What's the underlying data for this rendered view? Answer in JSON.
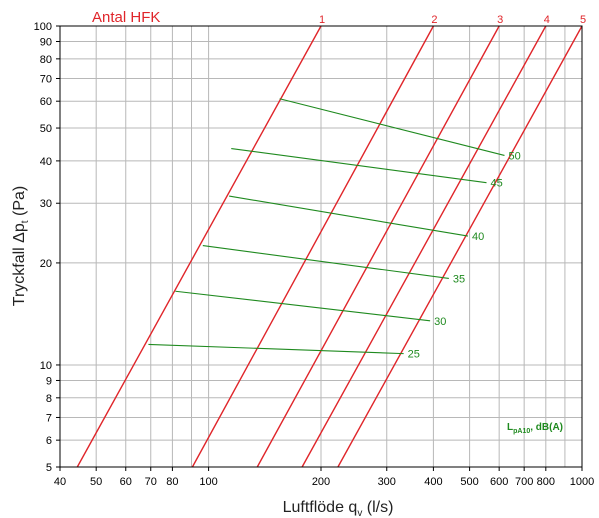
{
  "chart_data": {
    "type": "line",
    "title": "Antal HFK",
    "xlabel": "Luftflöde q",
    "xlabel_sub": "v",
    "xlabel_unit": " (l/s)",
    "ylabel": "Tryckfall Δp",
    "ylabel_sub": "t",
    "ylabel_unit": " (Pa)",
    "x_scale": "log",
    "y_scale": "log",
    "xlim": [
      40,
      1000
    ],
    "ylim": [
      5,
      100
    ],
    "grid": true,
    "x_ticks": [
      40,
      50,
      60,
      70,
      80,
      100,
      200,
      300,
      400,
      500,
      600,
      700,
      800,
      1000
    ],
    "x_tick_labels": [
      "40",
      "50",
      "60",
      "70",
      "80",
      "100",
      "200",
      "300",
      "400",
      "500",
      "600",
      "700",
      "800",
      "1000"
    ],
    "y_ticks": [
      5,
      6,
      7,
      8,
      9,
      10,
      20,
      30,
      40,
      50,
      60,
      70,
      80,
      90,
      100
    ],
    "y_tick_labels": [
      "5",
      "6",
      "7",
      "8",
      "9",
      "10",
      "20",
      "30",
      "40",
      "50",
      "60",
      "70",
      "80",
      "90",
      "100"
    ],
    "red_color": "#e0252a",
    "green_color": "#1f8a1f",
    "red_series": [
      {
        "name": "1",
        "points": [
          [
            44.5,
            5
          ],
          [
            200,
            100
          ]
        ]
      },
      {
        "name": "2",
        "points": [
          [
            90.5,
            5
          ],
          [
            400,
            100
          ]
        ]
      },
      {
        "name": "3",
        "points": [
          [
            135,
            5
          ],
          [
            600,
            100
          ]
        ]
      },
      {
        "name": "4",
        "points": [
          [
            178,
            5
          ],
          [
            800,
            100
          ]
        ]
      },
      {
        "name": "5",
        "points": [
          [
            222,
            5
          ],
          [
            1000,
            100
          ]
        ]
      }
    ],
    "green_series": [
      {
        "name": "50",
        "points": [
          [
            155,
            61
          ],
          [
            620,
            41.5
          ]
        ]
      },
      {
        "name": "45",
        "points": [
          [
            115,
            43.5
          ],
          [
            555,
            34.5
          ]
        ]
      },
      {
        "name": "40",
        "points": [
          [
            113.5,
            31.5
          ],
          [
            495,
            24
          ]
        ]
      },
      {
        "name": "35",
        "points": [
          [
            96.5,
            22.5
          ],
          [
            440,
            18
          ]
        ]
      },
      {
        "name": "30",
        "points": [
          [
            81.5,
            16.5
          ],
          [
            392,
            13.5
          ]
        ]
      },
      {
        "name": "25",
        "points": [
          [
            69,
            11.5
          ],
          [
            333,
            10.8
          ]
        ]
      }
    ],
    "legend_note": "L",
    "legend_note_sub": "pA10",
    "legend_note_unit": ", dB(A)"
  }
}
